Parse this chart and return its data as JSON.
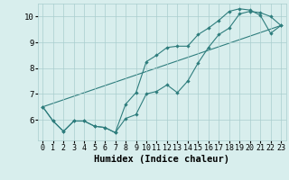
{
  "xlabel": "Humidex (Indice chaleur)",
  "x_values": [
    0,
    1,
    2,
    3,
    4,
    5,
    6,
    7,
    8,
    9,
    10,
    11,
    12,
    13,
    14,
    15,
    16,
    17,
    18,
    19,
    20,
    21,
    22,
    23
  ],
  "line1": [
    6.5,
    5.95,
    5.55,
    5.95,
    5.95,
    5.75,
    5.7,
    5.5,
    6.05,
    6.2,
    7.0,
    7.1,
    7.35,
    7.05,
    7.5,
    8.2,
    8.8,
    9.3,
    9.55,
    10.1,
    10.2,
    10.15,
    10.0,
    9.65
  ],
  "line2": [
    6.5,
    5.95,
    5.55,
    5.95,
    5.95,
    5.75,
    5.7,
    5.5,
    6.6,
    7.05,
    8.25,
    8.5,
    8.8,
    8.85,
    8.85,
    9.3,
    9.55,
    9.85,
    10.2,
    10.3,
    10.25,
    10.05,
    9.35,
    9.65
  ],
  "line3_x": [
    0,
    23
  ],
  "line3_y": [
    6.5,
    9.65
  ],
  "color": "#2e7d7d",
  "bg_color": "#d8eeed",
  "grid_color": "#aacece",
  "ylim": [
    5.2,
    10.5
  ],
  "xlim": [
    -0.5,
    23.5
  ],
  "yticks": [
    6,
    7,
    8,
    9,
    10
  ],
  "xticks": [
    0,
    1,
    2,
    3,
    4,
    5,
    6,
    7,
    8,
    9,
    10,
    11,
    12,
    13,
    14,
    15,
    16,
    17,
    18,
    19,
    20,
    21,
    22,
    23
  ],
  "tick_fontsize": 6.0,
  "xlabel_fontsize": 7.5
}
